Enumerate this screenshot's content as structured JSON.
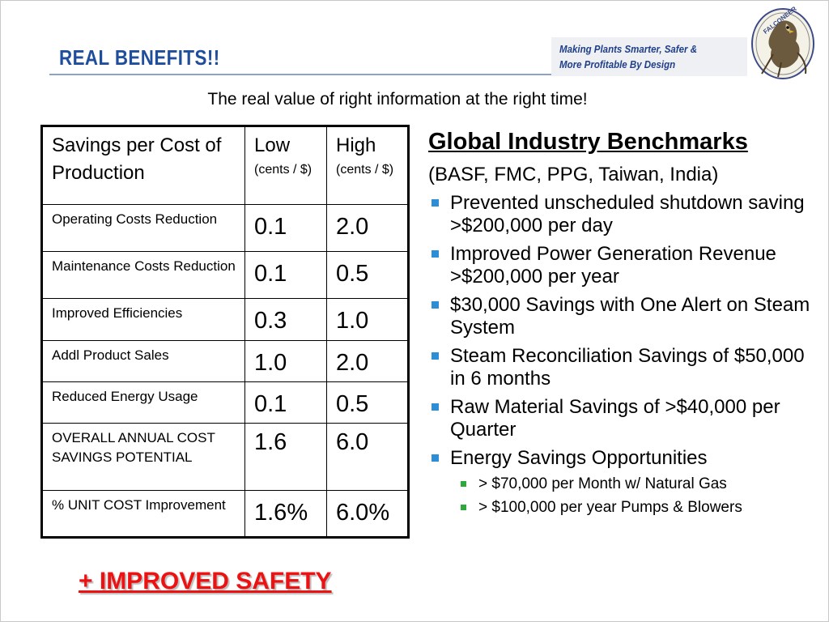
{
  "slide": {
    "title": "REAL BENEFITS!!",
    "tagline": [
      "Making Plants Smarter, Safer &",
      "More Profitable By Design"
    ],
    "logo_text": "FALCONEER",
    "subtitle": "The real value of right information at the right time!"
  },
  "table": {
    "header": {
      "col1": "Savings per Cost of Production",
      "col2": "Low",
      "col2_unit": "(cents / $)",
      "col3": "High",
      "col3_unit": "(cents / $)"
    },
    "rows": [
      {
        "label": "Operating Costs Reduction",
        "low": "0.1",
        "high": "2.0"
      },
      {
        "label": "Maintenance Costs Reduction",
        "low": "0.1",
        "high": "0.5"
      },
      {
        "label": "Improved Efficiencies",
        "low": "0.3",
        "high": "1.0"
      },
      {
        "label": "Addl Product Sales",
        "low": "1.0",
        "high": "2.0"
      },
      {
        "label": "Reduced Energy Usage",
        "low": "0.1",
        "high": "0.5"
      },
      {
        "label": "OVERALL ANNUAL COST SAVINGS POTENTIAL",
        "low": "1.6",
        "high": "6.0"
      },
      {
        "label": "% UNIT COST Improvement",
        "low": "1.6%",
        "high": "6.0%"
      }
    ]
  },
  "benchmarks": {
    "title": "Global Industry Benchmarks",
    "subtitle": "(BASF, FMC, PPG, Taiwan, India)",
    "bullets": [
      "Prevented unscheduled shutdown saving >$200,000 per day",
      "Improved Power Generation Revenue >$200,000 per year",
      "$30,000 Savings with One Alert on Steam System",
      "Steam Reconciliation Savings of $50,000 in 6 months",
      "Raw Material Savings of >$40,000 per Quarter",
      "Energy Savings Opportunities"
    ],
    "sub_bullets": [
      "> $70,000 per Month w/ Natural Gas",
      "> $100,000 per year Pumps & Blowers"
    ]
  },
  "footer": {
    "safety": "+ IMPROVED SAFETY"
  },
  "colors": {
    "title": "#1f4e9c",
    "bullet": "#2d8ed7",
    "sub_bullet": "#2ea83c",
    "safety": "#ee1111"
  }
}
